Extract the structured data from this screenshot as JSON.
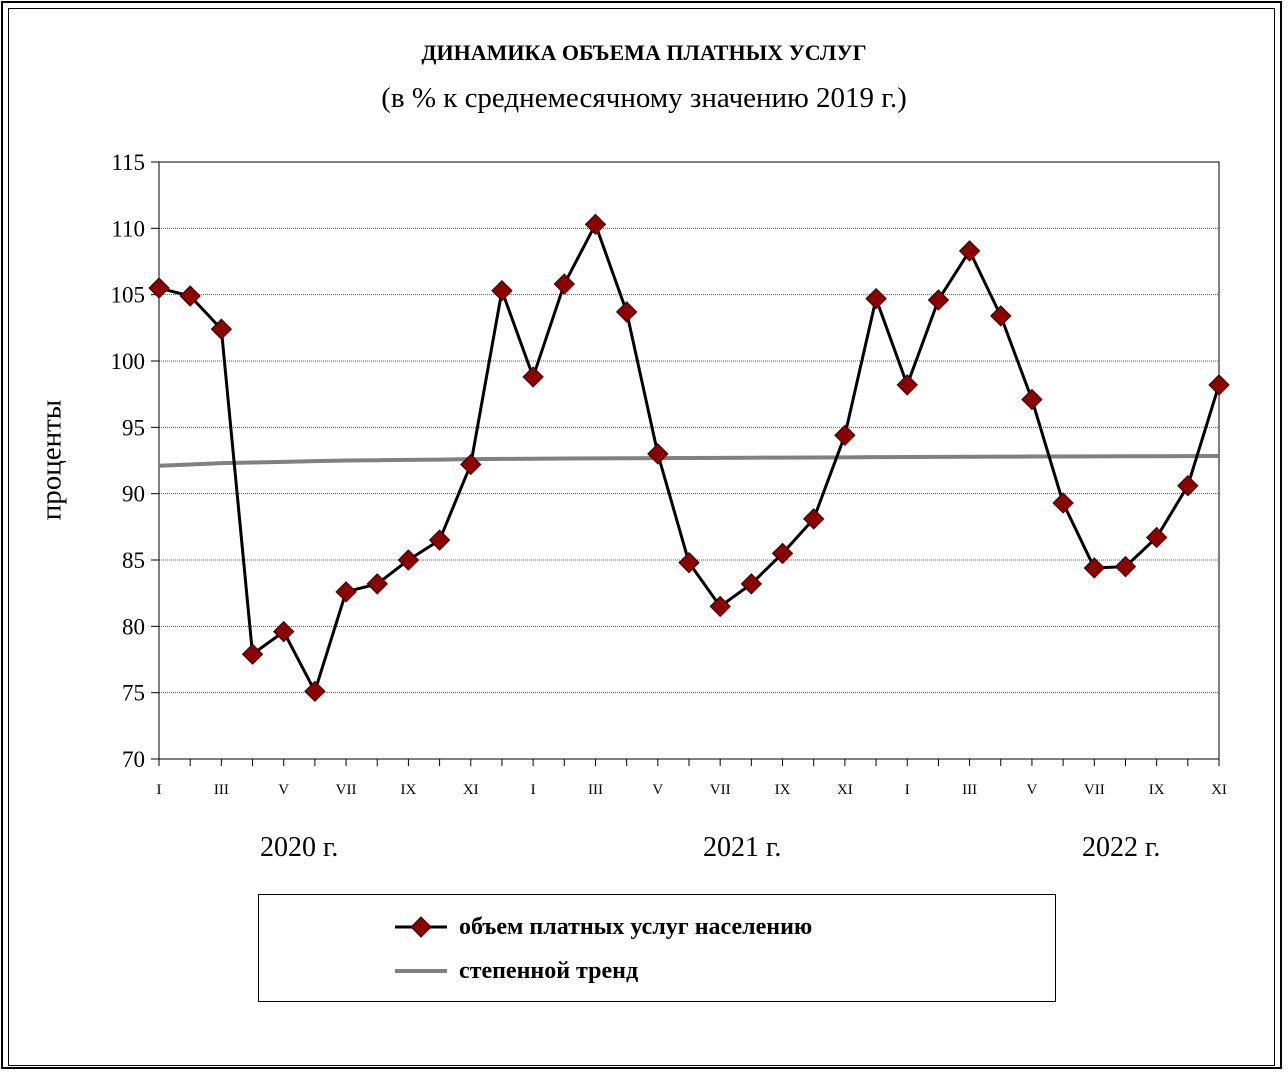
{
  "chart_data": {
    "type": "line",
    "title": "ДИНАМИКА ОБЪЕМА ПЛАТНЫХ УСЛУГ",
    "subtitle": "(в % к среднемесячному значению 2019 г.)",
    "ylabel": "проценты",
    "ylim": [
      70,
      115
    ],
    "yticks": [
      "70",
      "75",
      "80",
      "85",
      "90",
      "95",
      "100",
      "105",
      "110",
      "115"
    ],
    "x_labels": [
      "I",
      "",
      "III",
      "",
      "V",
      "",
      "VII",
      "",
      "IX",
      "",
      "XI",
      "",
      "I",
      "",
      "III",
      "",
      "V",
      "",
      "VII",
      "",
      "IX",
      "",
      "XI",
      "",
      "I",
      "",
      "III",
      "",
      "V",
      "",
      "VII",
      "",
      "IX",
      "",
      "XI"
    ],
    "year_labels": [
      "2020 г.",
      "2021 г.",
      "2022 г."
    ],
    "grid": true,
    "legend_position": "bottom",
    "series": [
      {
        "name": "объем платных услуг населению",
        "color": "#000000",
        "marker": "diamond",
        "marker_color": "#8b0000",
        "values": [
          105.5,
          104.9,
          102.4,
          77.9,
          79.6,
          75.1,
          82.6,
          83.2,
          85.0,
          86.5,
          92.2,
          105.3,
          98.8,
          105.8,
          110.3,
          103.7,
          93.0,
          84.8,
          81.5,
          83.2,
          85.5,
          88.1,
          94.4,
          104.7,
          98.2,
          104.6,
          108.3,
          103.4,
          97.1,
          89.3,
          84.4,
          84.5,
          86.7,
          90.6,
          98.2
        ]
      },
      {
        "name": "степенной тренд",
        "color": "#808080",
        "values": [
          92.1,
          92.2,
          92.3,
          92.35,
          92.4,
          92.45,
          92.5,
          92.52,
          92.55,
          92.57,
          92.6,
          92.62,
          92.63,
          92.65,
          92.66,
          92.67,
          92.68,
          92.69,
          92.7,
          92.71,
          92.72,
          92.73,
          92.74,
          92.75,
          92.76,
          92.77,
          92.78,
          92.79,
          92.8,
          92.8,
          92.81,
          92.82,
          92.82,
          92.83,
          92.84
        ]
      }
    ]
  }
}
